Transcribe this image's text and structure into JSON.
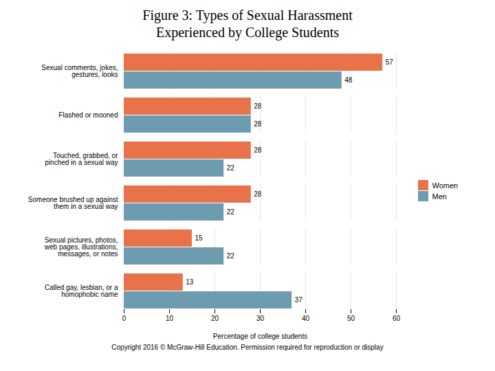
{
  "chart_data": {
    "type": "bar",
    "orientation": "horizontal",
    "title": "Figure 3: Types of Sexual Harassment\nExperienced by College Students",
    "categories": [
      "Sexual comments, jokes,\ngestures, looks",
      "Flashed or mooned",
      "Touched, grabbed, or\npinched in a sexual way",
      "Someone brushed up against\nthem in a sexual way",
      "Sexual pictures, photos,\nweb pages, illustrations,\nmessages, or notes",
      "Called gay, lesbian, or a\nhomophobic name"
    ],
    "series": [
      {
        "name": "Women",
        "color": "#E8734A",
        "values": [
          57,
          28,
          28,
          28,
          15,
          13
        ]
      },
      {
        "name": "Men",
        "color": "#6D9CB0",
        "values": [
          48,
          28,
          22,
          22,
          22,
          37
        ]
      }
    ],
    "xlabel": "Percentage of college students",
    "xlim": [
      0,
      60
    ],
    "xticks": [
      0,
      10,
      20,
      30,
      40,
      50,
      60
    ],
    "grid": true,
    "legend": "right",
    "data_labels": true,
    "caption": "Copyright 2016 © McGraw-Hill Education. Permission required for reproduction or display"
  }
}
